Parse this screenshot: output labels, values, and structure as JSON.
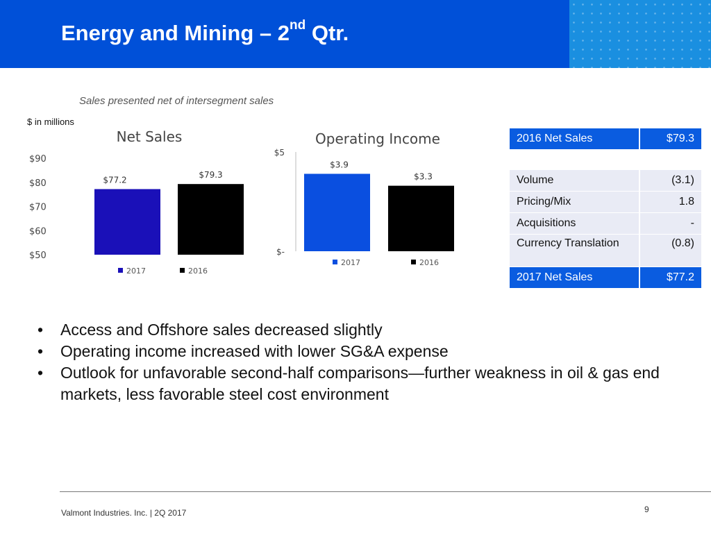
{
  "header": {
    "title": "Energy and Mining – 2",
    "title_sup": "nd",
    "title_tail": " Qtr."
  },
  "subtitle": "Sales presented net of intersegment sales",
  "units_note": "$ in millions",
  "chart_data": [
    {
      "type": "bar",
      "title": "Net Sales",
      "categories": [
        "2017",
        "2016"
      ],
      "values": [
        77.2,
        79.3
      ],
      "data_labels": [
        "$77.2",
        "$79.3"
      ],
      "ylim": [
        50,
        90
      ],
      "y_ticks": [
        50,
        60,
        70,
        80,
        90
      ],
      "y_tick_labels": [
        "$50",
        "$60",
        "$70",
        "$80",
        "$90"
      ],
      "colors": [
        "#1a10b8",
        "#000000"
      ],
      "legend": [
        "2017",
        "2016"
      ],
      "legend_position": "bottom",
      "grid": false
    },
    {
      "type": "bar",
      "title": "Operating Income",
      "categories": [
        "2017",
        "2016"
      ],
      "values": [
        3.9,
        3.3
      ],
      "data_labels": [
        "$3.9",
        "$3.3"
      ],
      "ylim": [
        0,
        5
      ],
      "y_ticks": [
        0,
        5
      ],
      "y_tick_labels": [
        "$-",
        "$5"
      ],
      "colors": [
        "#0a4fe0",
        "#000000"
      ],
      "legend": [
        "2017",
        "2016"
      ],
      "legend_position": "bottom",
      "grid": false
    }
  ],
  "bridge_table": {
    "header": {
      "label": "2016 Net Sales",
      "value": "$79.3"
    },
    "rows": [
      {
        "label": "Volume",
        "value": "(3.1)"
      },
      {
        "label": "Pricing/Mix",
        "value": "1.8"
      },
      {
        "label": "Acquisitions",
        "value": "-"
      },
      {
        "label": "Currency Translation",
        "value": "(0.8)"
      }
    ],
    "footer": {
      "label": "2017 Net Sales",
      "value": "$77.2"
    }
  },
  "bullets": [
    "Access and Offshore sales decreased slightly",
    "Operating income increased with lower SG&A expense",
    "Outlook for unfavorable second-half comparisons—further weakness in oil & gas end markets, less favorable steel cost environment"
  ],
  "bullet_symbol": "•",
  "footer": {
    "text": "Valmont Industries. Inc.  |   2Q 2017",
    "page": "9"
  }
}
